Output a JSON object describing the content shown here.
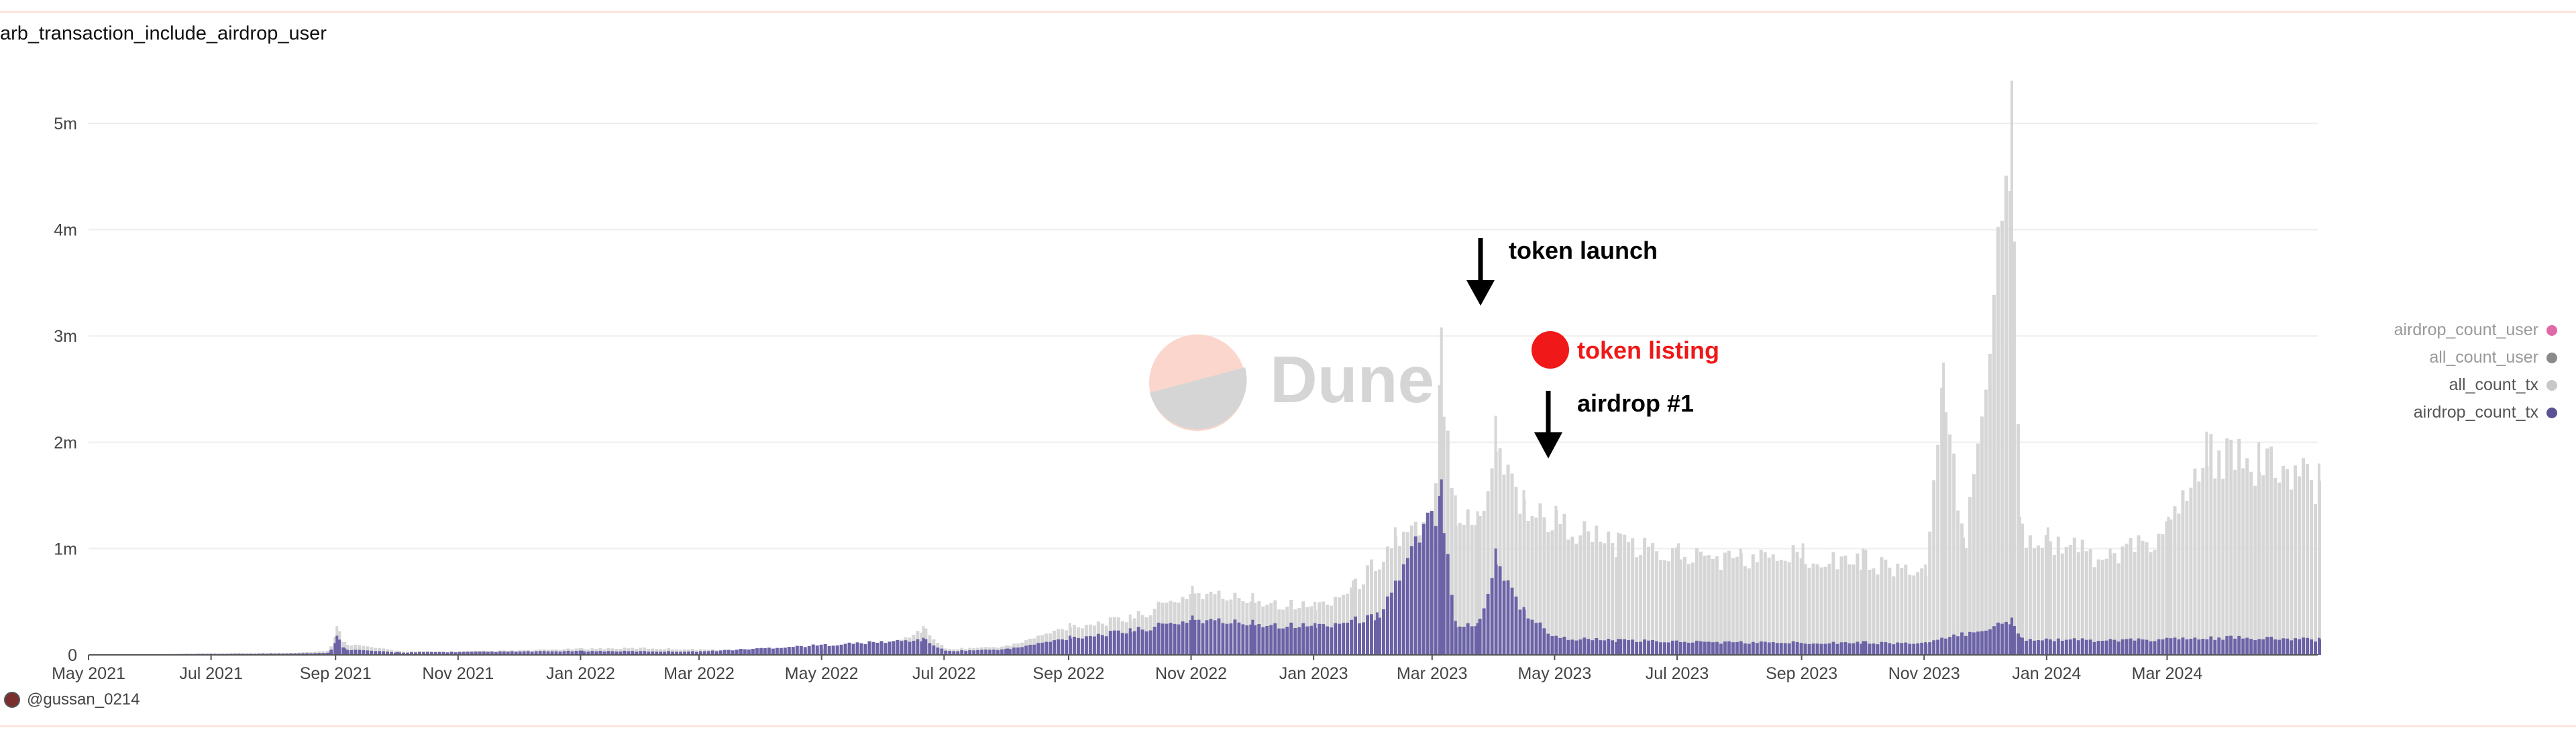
{
  "credit": "@gussan_0214",
  "watermark": "Dune",
  "colors": {
    "all_count_tx": "#d6d6d6",
    "airdrop_count_tx": "#6b63a6",
    "all_count_user": "#8a8a8a",
    "airdrop_count_user": "#e06aa8",
    "annotation_red": "#f01818",
    "watermark_pink": "#fbd6cc",
    "watermark_gray": "#d5d5d5"
  },
  "annotations": {
    "token_launch": "token launch",
    "token_listing": "token listing",
    "airdrop": "airdrop #1"
  },
  "chart_data": {
    "type": "bar",
    "title": "arb_transaction_include_airdrop_user",
    "xlabel": "",
    "ylabel": "",
    "x_range": [
      "2021-05-01",
      "2024-05-15"
    ],
    "ylim": [
      0,
      5500000
    ],
    "yticks": [
      {
        "value": 0,
        "label": "0"
      },
      {
        "value": 1000000,
        "label": "1m"
      },
      {
        "value": 2000000,
        "label": "2m"
      },
      {
        "value": 3000000,
        "label": "3m"
      },
      {
        "value": 4000000,
        "label": "4m"
      },
      {
        "value": 5000000,
        "label": "5m"
      }
    ],
    "xticks": [
      {
        "date": "2021-05-01",
        "label": "May 2021"
      },
      {
        "date": "2021-07-01",
        "label": "Jul 2021"
      },
      {
        "date": "2021-09-01",
        "label": "Sep 2021"
      },
      {
        "date": "2021-11-01",
        "label": "Nov 2021"
      },
      {
        "date": "2022-01-01",
        "label": "Jan 2022"
      },
      {
        "date": "2022-03-01",
        "label": "Mar 2022"
      },
      {
        "date": "2022-05-01",
        "label": "May 2022"
      },
      {
        "date": "2022-07-01",
        "label": "Jul 2022"
      },
      {
        "date": "2022-09-01",
        "label": "Sep 2022"
      },
      {
        "date": "2022-11-01",
        "label": "Nov 2022"
      },
      {
        "date": "2023-01-01",
        "label": "Jan 2023"
      },
      {
        "date": "2023-03-01",
        "label": "Mar 2023"
      },
      {
        "date": "2023-05-01",
        "label": "May 2023"
      },
      {
        "date": "2023-07-01",
        "label": "Jul 2023"
      },
      {
        "date": "2023-09-01",
        "label": "Sep 2023"
      },
      {
        "date": "2023-11-01",
        "label": "Nov 2023"
      },
      {
        "date": "2024-01-01",
        "label": "Jan 2024"
      },
      {
        "date": "2024-03-01",
        "label": "Mar 2024"
      }
    ],
    "grid": true,
    "legend": "right",
    "legend_entries": [
      "airdrop_count_user",
      "all_count_user",
      "all_count_tx",
      "airdrop_count_tx"
    ],
    "series": [
      {
        "name": "all_count_tx",
        "points": [
          [
            "2021-05-01",
            5000
          ],
          [
            "2021-06-15",
            8000
          ],
          [
            "2021-08-01",
            15000
          ],
          [
            "2021-08-28",
            40000
          ],
          [
            "2021-09-01",
            270000
          ],
          [
            "2021-09-05",
            120000
          ],
          [
            "2021-10-01",
            40000
          ],
          [
            "2021-11-01",
            35000
          ],
          [
            "2021-12-01",
            45000
          ],
          [
            "2022-01-01",
            65000
          ],
          [
            "2022-02-01",
            70000
          ],
          [
            "2022-03-01",
            55000
          ],
          [
            "2022-04-01",
            50000
          ],
          [
            "2022-05-01",
            55000
          ],
          [
            "2022-06-01",
            80000
          ],
          [
            "2022-06-20",
            270000
          ],
          [
            "2022-07-01",
            60000
          ],
          [
            "2022-08-01",
            90000
          ],
          [
            "2022-09-01",
            300000
          ],
          [
            "2022-10-01",
            380000
          ],
          [
            "2022-11-01",
            650000
          ],
          [
            "2022-12-01",
            580000
          ],
          [
            "2023-01-01",
            500000
          ],
          [
            "2023-01-20",
            700000
          ],
          [
            "2023-02-10",
            1200000
          ],
          [
            "2023-02-28",
            1350000
          ],
          [
            "2023-03-05",
            3080000
          ],
          [
            "2023-03-12",
            1500000
          ],
          [
            "2023-03-23",
            1350000
          ],
          [
            "2023-04-01",
            2250000
          ],
          [
            "2023-04-15",
            1550000
          ],
          [
            "2023-05-01",
            1400000
          ],
          [
            "2023-06-01",
            1150000
          ],
          [
            "2023-07-01",
            1050000
          ],
          [
            "2023-08-01",
            1000000
          ],
          [
            "2023-09-01",
            1050000
          ],
          [
            "2023-10-01",
            1000000
          ],
          [
            "2023-11-01",
            850000
          ],
          [
            "2023-11-10",
            2750000
          ],
          [
            "2023-11-20",
            1100000
          ],
          [
            "2023-12-14",
            5400000
          ],
          [
            "2023-12-18",
            1300000
          ],
          [
            "2024-01-01",
            1200000
          ],
          [
            "2024-02-01",
            1000000
          ],
          [
            "2024-03-01",
            1300000
          ],
          [
            "2024-03-20",
            2100000
          ],
          [
            "2024-04-15",
            2000000
          ],
          [
            "2024-05-15",
            1800000
          ]
        ]
      },
      {
        "name": "airdrop_count_tx",
        "points": [
          [
            "2021-05-01",
            2000
          ],
          [
            "2021-08-28",
            20000
          ],
          [
            "2021-09-01",
            180000
          ],
          [
            "2021-09-05",
            60000
          ],
          [
            "2021-10-01",
            25000
          ],
          [
            "2022-01-01",
            40000
          ],
          [
            "2022-03-01",
            35000
          ],
          [
            "2022-06-20",
            160000
          ],
          [
            "2022-07-01",
            40000
          ],
          [
            "2022-08-01",
            60000
          ],
          [
            "2022-09-01",
            180000
          ],
          [
            "2022-10-01",
            250000
          ],
          [
            "2022-11-01",
            370000
          ],
          [
            "2022-12-01",
            330000
          ],
          [
            "2023-01-01",
            300000
          ],
          [
            "2023-02-01",
            400000
          ],
          [
            "2023-03-05",
            1650000
          ],
          [
            "2023-03-12",
            320000
          ],
          [
            "2023-03-23",
            300000
          ],
          [
            "2023-04-01",
            1000000
          ],
          [
            "2023-04-15",
            450000
          ],
          [
            "2023-05-01",
            180000
          ],
          [
            "2023-06-01",
            150000
          ],
          [
            "2023-08-01",
            130000
          ],
          [
            "2023-10-01",
            130000
          ],
          [
            "2023-11-01",
            120000
          ],
          [
            "2023-12-14",
            350000
          ],
          [
            "2023-12-18",
            170000
          ],
          [
            "2024-02-01",
            150000
          ],
          [
            "2024-04-01",
            180000
          ],
          [
            "2024-05-15",
            160000
          ]
        ]
      }
    ]
  }
}
